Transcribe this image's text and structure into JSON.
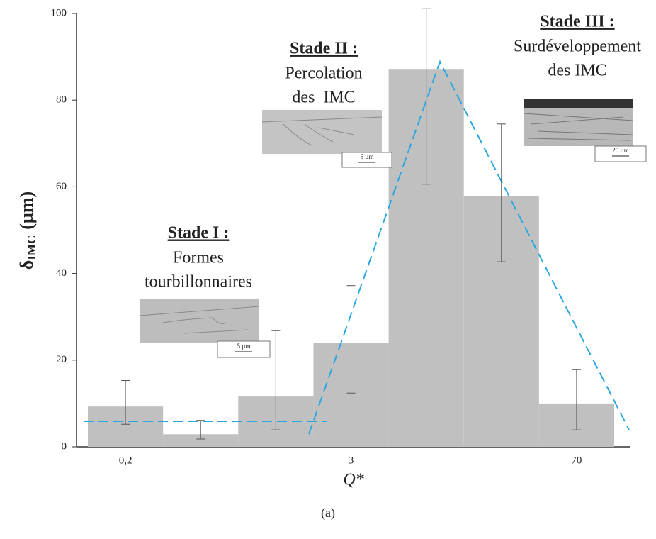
{
  "chart_data": {
    "type": "bar",
    "categories": [
      "0,2",
      null,
      null,
      "3",
      null,
      null,
      "70"
    ],
    "values": [
      9.3,
      2.9,
      11.6,
      23.9,
      87.2,
      57.8,
      10.0
    ],
    "error_upper": [
      15.3,
      6.1,
      26.8,
      37.2,
      101.1,
      74.5,
      17.8
    ],
    "error_lower": [
      5.2,
      1.8,
      3.9,
      12.4,
      60.6,
      42.7,
      3.9
    ],
    "color": "#c0c0c0",
    "ylim": [
      0,
      100
    ],
    "yticks": [
      0,
      20,
      40,
      60,
      80,
      100
    ],
    "y_label": {
      "symbol": "δ",
      "subscript": "IMC",
      "unit": "(µm)"
    },
    "x_label": "Q*",
    "caption": "(a)",
    "annotations": [
      {
        "title": "Stade I :",
        "lines": [
          "Formes",
          "tourbillonnaires"
        ],
        "scale": "5 µm"
      },
      {
        "title": "Stade II :",
        "lines": [
          "Percolation",
          "des  IMC"
        ],
        "scale": "5 µm"
      },
      {
        "title": "Stade III :",
        "lines": [
          "Surdéveloppement",
          "des IMC"
        ],
        "scale": "20 µm"
      }
    ]
  }
}
